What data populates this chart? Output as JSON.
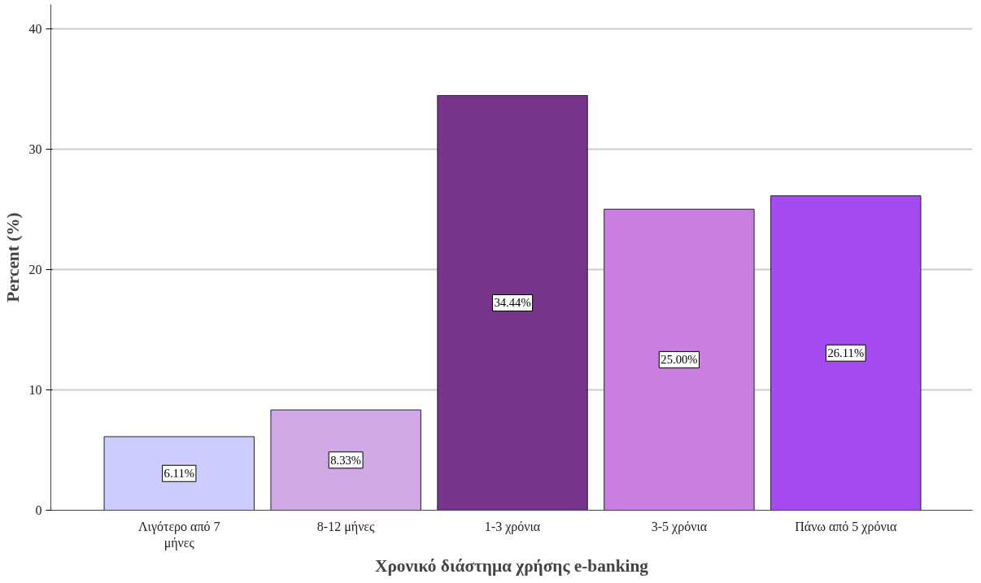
{
  "chart_data": {
    "type": "bar",
    "xlabel": "Χρονικό διάστημα χρήσης e-banking",
    "ylabel": "Percent (%)",
    "categories": [
      "Λιγότερο από 7 μήνες",
      "8-12 μήνες",
      "1-3 χρόνια",
      "3-5 χρόνια",
      "Πάνω από 5 χρόνια"
    ],
    "values": [
      6.11,
      8.33,
      34.44,
      25.0,
      26.11
    ],
    "colors": [
      "#ccccff",
      "#d0a8e6",
      "#76358b",
      "#c87fe0",
      "#a64bf0"
    ],
    "value_labels": [
      "6.11%",
      "8.33%",
      "34.44%",
      "25.00%",
      "26.11%"
    ],
    "ylim": [
      0,
      42
    ],
    "yticks": [
      0,
      10,
      20,
      30,
      40
    ],
    "grid": "y"
  }
}
